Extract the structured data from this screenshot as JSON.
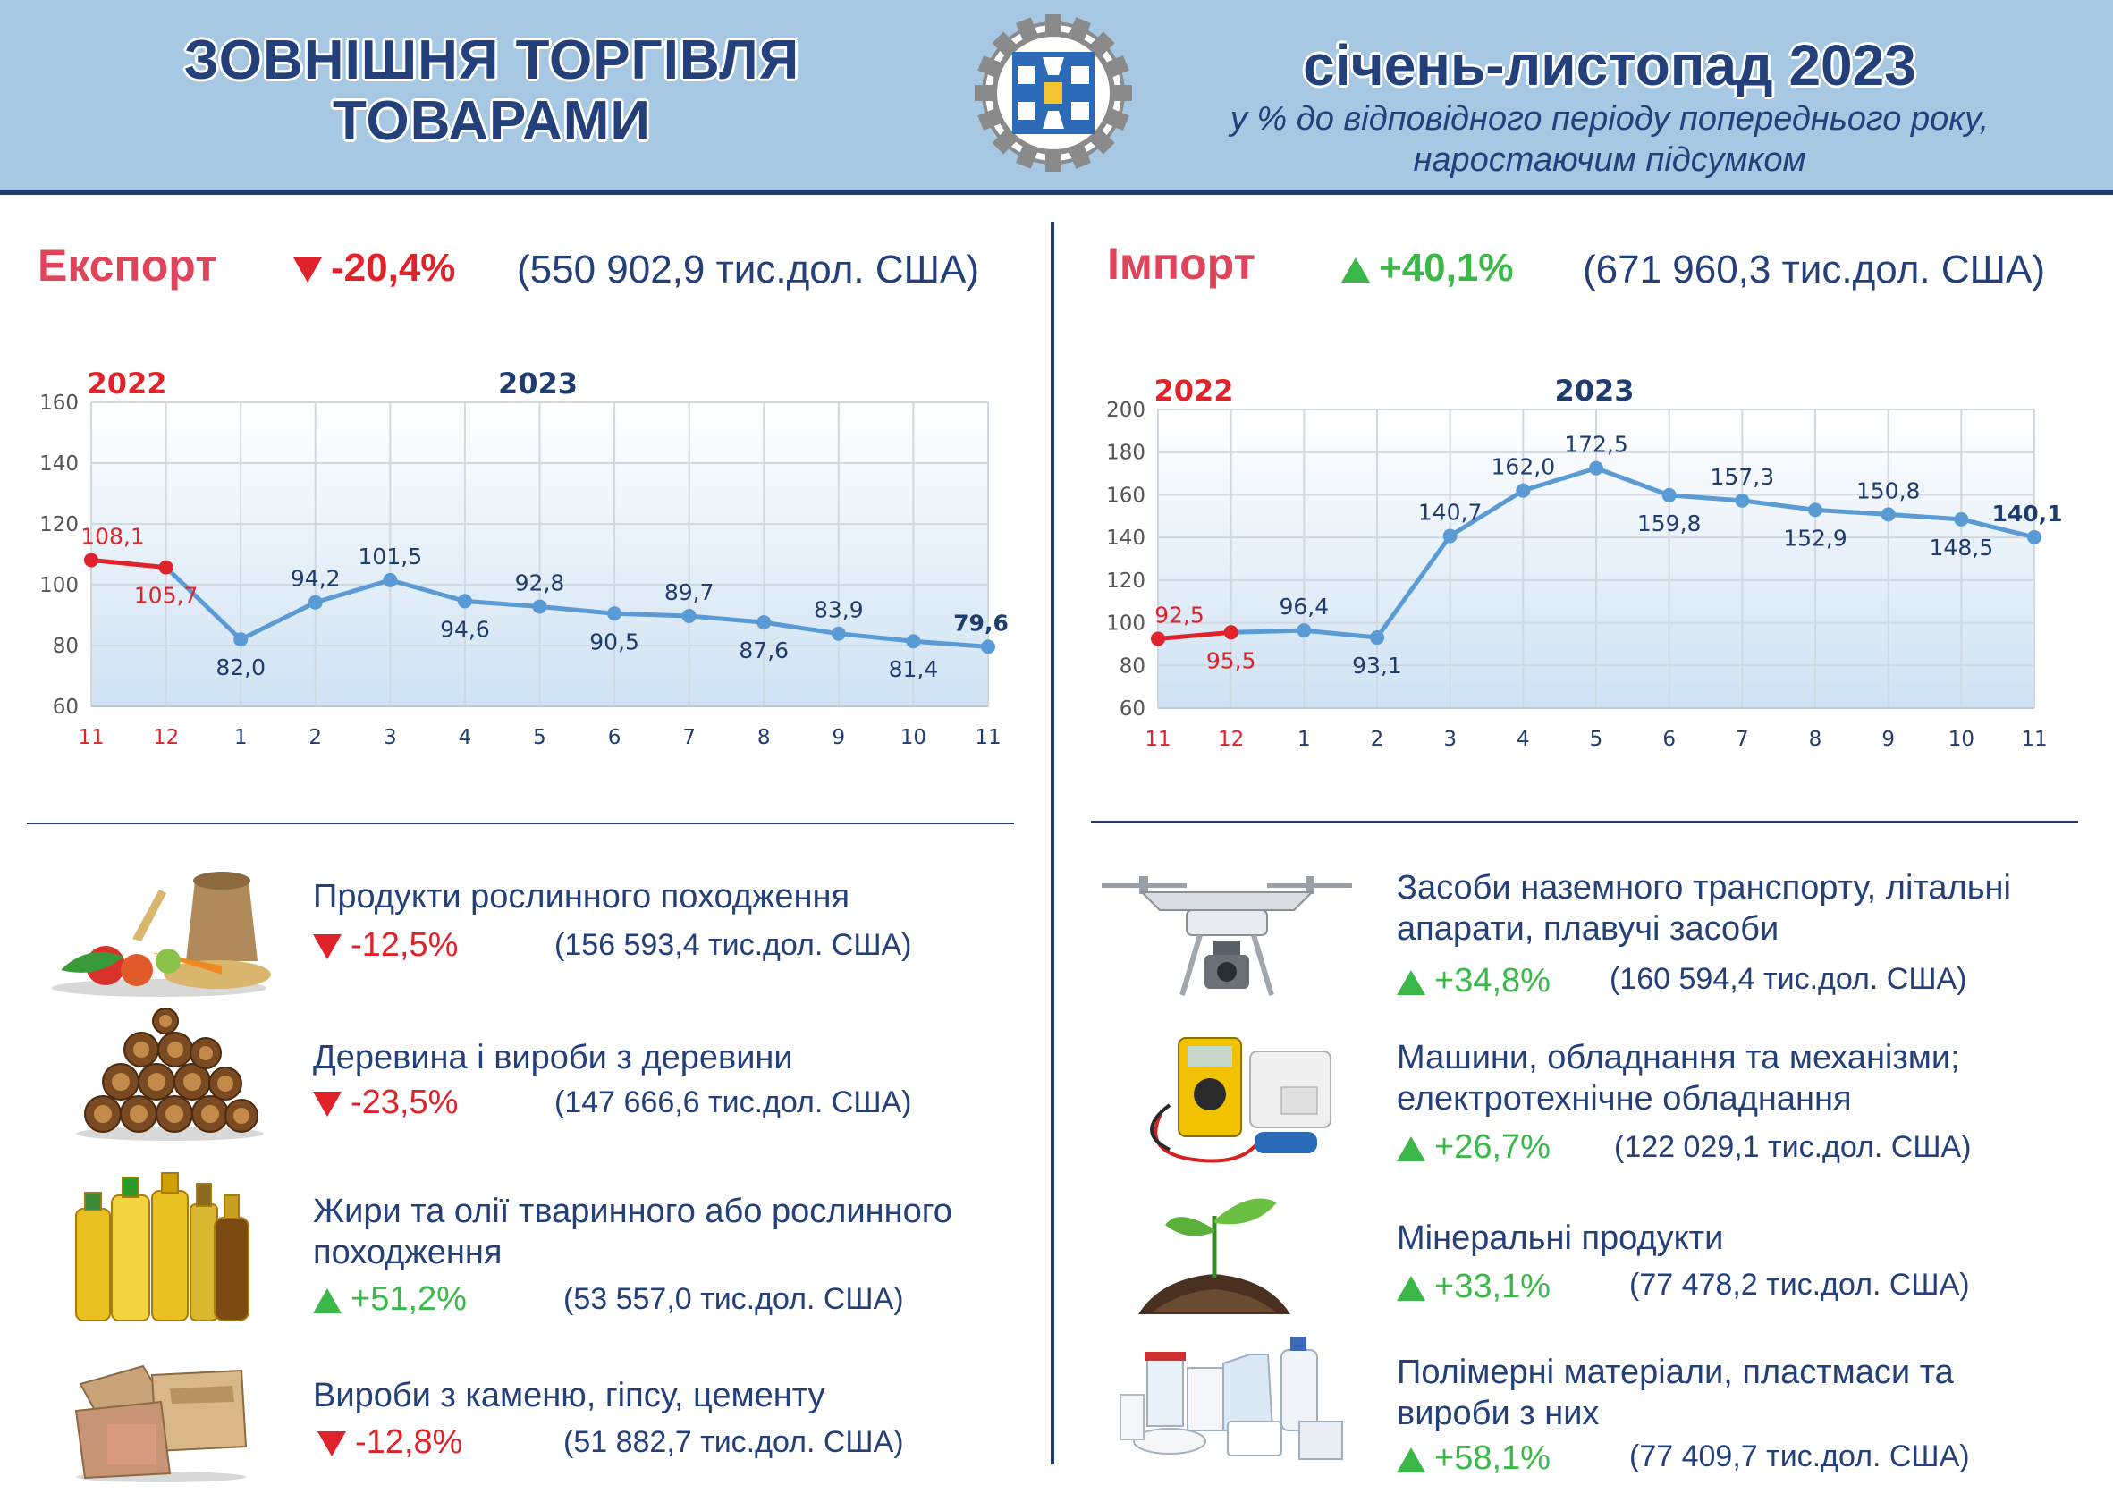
{
  "header": {
    "title_line1": "ЗОВНІШНЯ ТОРГІВЛЯ",
    "title_line2": "ТОВАРАМИ",
    "period": "січень-листопад 2023",
    "subtitle_line1": "у % до відповідного періоду попереднього року,",
    "subtitle_line2": "наростаючим підсумком",
    "logo_icon": "statistics-service-gear-logo"
  },
  "colors": {
    "header_bg": "#a6c8e3",
    "navy": "#1f3c6e",
    "line_2023": "#5b9bd5",
    "line_2022": "#e0232a",
    "negative": "#e0232a",
    "positive": "#3cb84a",
    "section_title": "#e0445a"
  },
  "export": {
    "title": "Експорт",
    "change": "-20,4%",
    "total": "(550 902,9 тис.дол. США)",
    "items": [
      {
        "name_lines": [
          "Продукти рослинного походження"
        ],
        "change": "-12,5%",
        "value": "(156 593,4 тис.дол. США)",
        "icon": "vegetables-grain-icon"
      },
      {
        "name_lines": [
          "Деревина і вироби з деревини"
        ],
        "change": "-23,5%",
        "value": "(147 666,6 тис.дол. США)",
        "icon": "firewood-logs-icon"
      },
      {
        "name_lines": [
          "Жири та олії тваринного або рослинного",
          "походження"
        ],
        "change": "+51,2%",
        "value": "(53 557,0 тис.дол. США)",
        "icon": "oil-bottles-icon"
      },
      {
        "name_lines": [
          "Вироби з каменю, гіпсу, цементу"
        ],
        "change": "-12,8%",
        "value": "(51 882,7 тис.дол. США)",
        "icon": "cement-bags-icon"
      }
    ]
  },
  "import": {
    "title": "Імпорт",
    "change": "+40,1%",
    "total": "(671 960,3 тис.дол. США)",
    "items": [
      {
        "name_lines": [
          "Засоби наземного транспорту, літальні",
          "апарати, плавучі засоби"
        ],
        "change": "+34,8%",
        "value": "(160 594,4 тис.дол. США)",
        "icon": "drone-icon"
      },
      {
        "name_lines": [
          "Машини, обладнання та механізми;",
          "електротехнічне обладнання"
        ],
        "change": "+26,7%",
        "value": "(122 029,1 тис.дол. США)",
        "icon": "multimeter-equipment-icon"
      },
      {
        "name_lines": [
          "Мінеральні продукти"
        ],
        "change": "+33,1%",
        "value": "(77 478,2 тис.дол. США)",
        "icon": "sprout-soil-icon"
      },
      {
        "name_lines": [
          "Полімерні матеріали, пластмаси та",
          "вироби з них"
        ],
        "change": "+58,1%",
        "value": "(77 409,7 тис.дол. США)",
        "icon": "plastic-containers-icon"
      }
    ]
  },
  "chart_data": [
    {
      "type": "line",
      "title": "",
      "year_labels": [
        "2022",
        "2023"
      ],
      "categories": [
        "11",
        "12",
        "1",
        "2",
        "3",
        "4",
        "5",
        "6",
        "7",
        "8",
        "9",
        "10",
        "11"
      ],
      "values": [
        108.1,
        105.7,
        82.0,
        94.2,
        101.5,
        94.6,
        92.8,
        90.5,
        89.7,
        87.6,
        83.9,
        81.4,
        79.6
      ],
      "value_labels": [
        "108,1",
        "105,7",
        "82,0",
        "94,2",
        "101,5",
        "94,6",
        "92,8",
        "90,5",
        "89,7",
        "87,6",
        "83,9",
        "81,4",
        "79,6"
      ],
      "label_pos": [
        "up",
        "down",
        "down",
        "up",
        "up",
        "down",
        "up",
        "down",
        "up",
        "down",
        "up",
        "down",
        "up"
      ],
      "ylim": [
        60,
        160
      ],
      "yticks": [
        60,
        80,
        100,
        120,
        140,
        160
      ],
      "grid": true
    },
    {
      "type": "line",
      "title": "",
      "year_labels": [
        "2022",
        "2023"
      ],
      "categories": [
        "11",
        "12",
        "1",
        "2",
        "3",
        "4",
        "5",
        "6",
        "7",
        "8",
        "9",
        "10",
        "11"
      ],
      "values": [
        92.5,
        95.5,
        96.4,
        93.1,
        140.7,
        162.0,
        172.5,
        159.8,
        157.3,
        152.9,
        150.8,
        148.5,
        140.1
      ],
      "value_labels": [
        "92,5",
        "95,5",
        "96,4",
        "93,1",
        "140,7",
        "162,0",
        "172,5",
        "159,8",
        "157,3",
        "152,9",
        "150,8",
        "148,5",
        "140,1"
      ],
      "label_pos": [
        "up",
        "down",
        "up",
        "down",
        "up",
        "up",
        "up",
        "down",
        "up",
        "down",
        "up",
        "down",
        "up"
      ],
      "ylim": [
        60,
        200
      ],
      "yticks": [
        60,
        80,
        100,
        120,
        140,
        160,
        180,
        200
      ],
      "grid": true
    }
  ]
}
